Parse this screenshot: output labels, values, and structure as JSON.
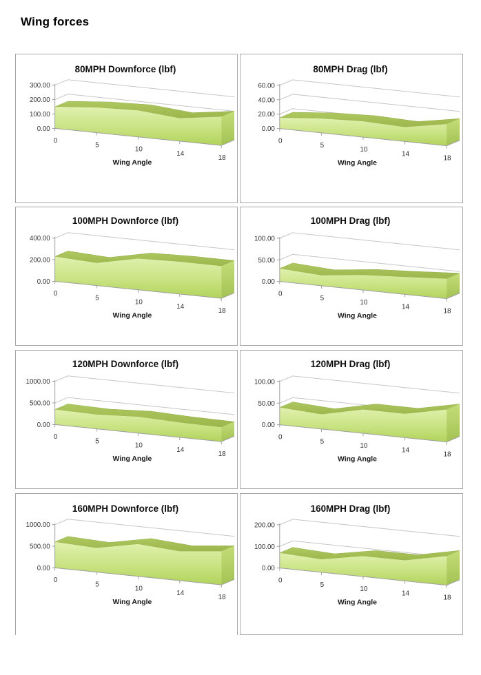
{
  "page": {
    "title": "Wing forces"
  },
  "colors": {
    "panel_border": "#a6a6a6",
    "gridline": "#c6c6c6",
    "axis": "#9e9e9e",
    "area_front_top": "#e0f1ae",
    "area_front_mid": "#c9e382",
    "area_front_bottom": "#b1d35c",
    "area_ridge_top": "#aec860",
    "area_ridge_bottom": "#9cb74c",
    "area_side_top": "#c4dd78",
    "area_side_bottom": "#a3c253",
    "ridge_edge": "#92ae47",
    "title_text": "#0d0d0d",
    "label_text": "#333333"
  },
  "chart_data": [
    {
      "type": "area",
      "title": "80MPH Downforce (lbf)",
      "xlabel": "Wing Angle",
      "categories": [
        "0",
        "5",
        "10",
        "14",
        "18"
      ],
      "values": [
        150,
        175,
        185,
        160,
        200
      ],
      "ymax": 300,
      "ystep": 100,
      "yticks": [
        "0.00",
        "100.00",
        "200.00",
        "300.00"
      ],
      "grid": true,
      "legend": "none"
    },
    {
      "type": "area",
      "title": "80MPH Drag (lbf)",
      "xlabel": "Wing Angle",
      "categories": [
        "0",
        "5",
        "10",
        "14",
        "18"
      ],
      "values": [
        15,
        20,
        22,
        20,
        30
      ],
      "ymax": 60,
      "ystep": 20,
      "yticks": [
        "0.00",
        "20.00",
        "40.00",
        "60.00"
      ],
      "grid": true,
      "legend": "none"
    },
    {
      "type": "area",
      "title": "100MPH Downforce (lbf)",
      "xlabel": "Wing Angle",
      "categories": [
        "0",
        "5",
        "10",
        "14",
        "18"
      ],
      "values": [
        230,
        210,
        290,
        300,
        300
      ],
      "ymax": 400,
      "ystep": 200,
      "yticks": [
        "0.00",
        "200.00",
        "400.00"
      ],
      "grid": true,
      "legend": "none"
    },
    {
      "type": "area",
      "title": "100MPH Drag (lbf)",
      "xlabel": "Wing Angle",
      "categories": [
        "0",
        "5",
        "10",
        "14",
        "18"
      ],
      "values": [
        30,
        24,
        35,
        40,
        46
      ],
      "ymax": 100,
      "ystep": 50,
      "yticks": [
        "0.00",
        "50.00",
        "100.00"
      ],
      "grid": true,
      "legend": "none"
    },
    {
      "type": "area",
      "title": "120MPH Downforce (lbf)",
      "xlabel": "Wing Angle",
      "categories": [
        "0",
        "5",
        "10",
        "14",
        "18"
      ],
      "values": [
        350,
        330,
        380,
        345,
        335
      ],
      "ymax": 1000,
      "ystep": 500,
      "yticks": [
        "0.00",
        "500.00",
        "1000.00"
      ],
      "grid": true,
      "legend": "none"
    },
    {
      "type": "area",
      "title": "120MPH Drag (lbf)",
      "xlabel": "Wing Angle",
      "categories": [
        "0",
        "5",
        "10",
        "14",
        "18"
      ],
      "values": [
        40,
        34,
        55,
        55,
        75
      ],
      "ymax": 100,
      "ystep": 50,
      "yticks": [
        "0.00",
        "50.00",
        "100.00"
      ],
      "grid": true,
      "legend": "none"
    },
    {
      "type": "area",
      "title": "160MPH Downforce (lbf)",
      "xlabel": "Wing Angle",
      "categories": [
        "0",
        "5",
        "10",
        "14",
        "18"
      ],
      "values": [
        600,
        560,
        750,
        680,
        780
      ],
      "ymax": 1000,
      "ystep": 500,
      "yticks": [
        "0.00",
        "500.00",
        "1000.00"
      ],
      "grid": true,
      "legend": "none"
    },
    {
      "type": "area",
      "title": "160MPH Drag (lbf)",
      "xlabel": "Wing Angle",
      "categories": [
        "0",
        "5",
        "10",
        "14",
        "18"
      ],
      "values": [
        70,
        60,
        95,
        95,
        135
      ],
      "ymax": 200,
      "ystep": 100,
      "yticks": [
        "0.00",
        "100.00",
        "200.00"
      ],
      "grid": true,
      "legend": "none"
    }
  ]
}
